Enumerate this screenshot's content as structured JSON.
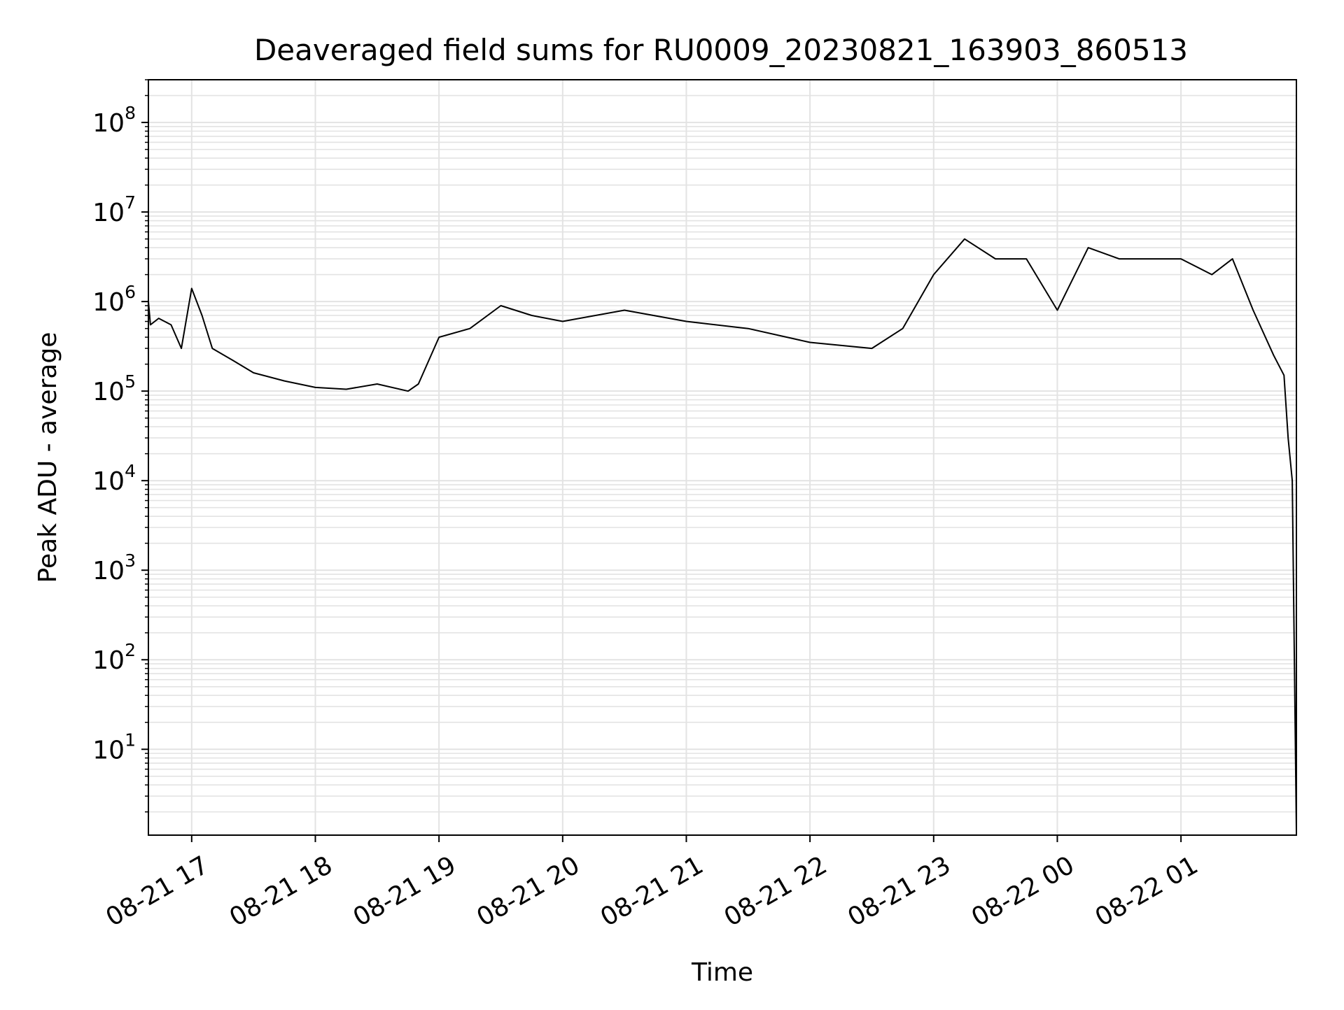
{
  "chart_data": {
    "type": "line",
    "title": "Deaveraged field sums for RU0009_20230821_163903_860513",
    "xlabel": "Time",
    "ylabel": "Peak ADU - average",
    "yscale": "log",
    "grid": true,
    "line_color": "#000000",
    "grid_color": "#e3e3e3",
    "xlim": [
      "2023-08-21 16:39",
      "2023-08-22 01:56"
    ],
    "ylim": [
      1.1,
      300000000
    ],
    "x_ticks": [
      {
        "value": "2023-08-21 17:00",
        "label": "08-21 17"
      },
      {
        "value": "2023-08-21 18:00",
        "label": "08-21 18"
      },
      {
        "value": "2023-08-21 19:00",
        "label": "08-21 19"
      },
      {
        "value": "2023-08-21 20:00",
        "label": "08-21 20"
      },
      {
        "value": "2023-08-21 21:00",
        "label": "08-21 21"
      },
      {
        "value": "2023-08-21 22:00",
        "label": "08-21 22"
      },
      {
        "value": "2023-08-21 23:00",
        "label": "08-21 23"
      },
      {
        "value": "2023-08-22 00:00",
        "label": "08-22 00"
      },
      {
        "value": "2023-08-22 01:00",
        "label": "08-22 01"
      }
    ],
    "y_ticks": [
      {
        "value": 10,
        "base": "10",
        "exp": "1"
      },
      {
        "value": 100,
        "base": "10",
        "exp": "2"
      },
      {
        "value": 1000,
        "base": "10",
        "exp": "3"
      },
      {
        "value": 10000,
        "base": "10",
        "exp": "4"
      },
      {
        "value": 100000,
        "base": "10",
        "exp": "5"
      },
      {
        "value": 1000000,
        "base": "10",
        "exp": "6"
      },
      {
        "value": 10000000,
        "base": "10",
        "exp": "7"
      },
      {
        "value": 100000000,
        "base": "10",
        "exp": "8"
      }
    ],
    "series": [
      {
        "name": "",
        "x": [
          "2023-08-21 16:39",
          "2023-08-21 16:40",
          "2023-08-21 16:44",
          "2023-08-21 16:50",
          "2023-08-21 16:55",
          "2023-08-21 17:00",
          "2023-08-21 17:05",
          "2023-08-21 17:10",
          "2023-08-21 17:20",
          "2023-08-21 17:30",
          "2023-08-21 17:45",
          "2023-08-21 18:00",
          "2023-08-21 18:15",
          "2023-08-21 18:30",
          "2023-08-21 18:45",
          "2023-08-21 18:50",
          "2023-08-21 19:00",
          "2023-08-21 19:15",
          "2023-08-21 19:30",
          "2023-08-21 19:45",
          "2023-08-21 20:00",
          "2023-08-21 20:30",
          "2023-08-21 21:00",
          "2023-08-21 21:30",
          "2023-08-21 22:00",
          "2023-08-21 22:30",
          "2023-08-21 22:45",
          "2023-08-21 23:00",
          "2023-08-21 23:15",
          "2023-08-21 23:30",
          "2023-08-21 23:45",
          "2023-08-22 00:00",
          "2023-08-22 00:15",
          "2023-08-22 00:30",
          "2023-08-22 00:45",
          "2023-08-22 01:00",
          "2023-08-22 01:15",
          "2023-08-22 01:25",
          "2023-08-22 01:35",
          "2023-08-22 01:45",
          "2023-08-22 01:50",
          "2023-08-22 01:52",
          "2023-08-22 01:54",
          "2023-08-22 01:56"
        ],
        "y": [
          1000000,
          550000,
          650000,
          550000,
          300000,
          1400000,
          700000,
          300000,
          220000,
          160000,
          130000,
          110000,
          105000,
          120000,
          100000,
          120000,
          400000,
          500000,
          900000,
          700000,
          600000,
          800000,
          600000,
          500000,
          350000,
          300000,
          500000,
          2000000,
          5000000,
          3000000,
          3000000,
          800000,
          4000000,
          3000000,
          3000000,
          3000000,
          2000000,
          3000000,
          800000,
          250000,
          150000,
          30000,
          10000,
          1.2
        ]
      }
    ]
  }
}
